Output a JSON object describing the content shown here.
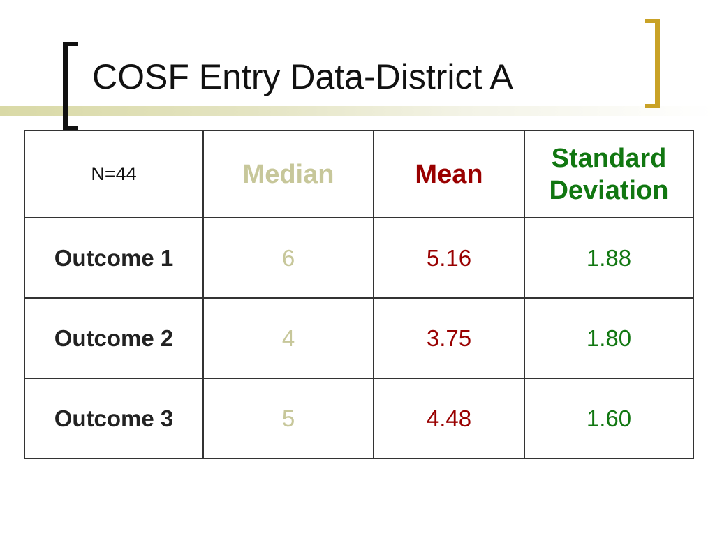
{
  "slide": {
    "title": "COSF Entry Data-District A"
  },
  "colors": {
    "median": "#c7c79a",
    "mean": "#990000",
    "std_dev": "#117711",
    "left_bracket": "#111111",
    "right_bracket": "#c9a227",
    "title_bar": "#d9d9a6"
  },
  "table": {
    "n_label": "N=44",
    "headers": {
      "median": "Median",
      "mean": "Mean",
      "std_dev": "Standard Deviation"
    },
    "rows": [
      {
        "label": "Outcome 1",
        "median": "6",
        "mean": "5.16",
        "std_dev": "1.88"
      },
      {
        "label": "Outcome 2",
        "median": "4",
        "mean": "3.75",
        "std_dev": "1.80"
      },
      {
        "label": "Outcome 3",
        "median": "5",
        "mean": "4.48",
        "std_dev": "1.60"
      }
    ]
  }
}
